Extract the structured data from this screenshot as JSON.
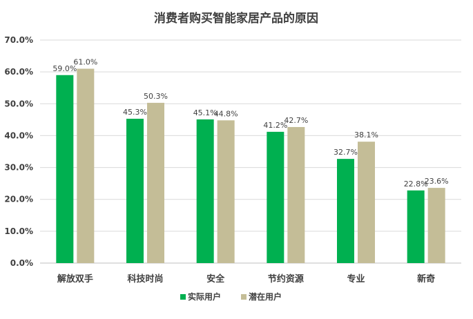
{
  "chart_data": {
    "type": "bar",
    "title": "消费者购买智能家居产品的原因",
    "categories": [
      "解放双手",
      "科技时尚",
      "安全",
      "节约资源",
      "专业",
      "新奇"
    ],
    "series": [
      {
        "name": "实际用户",
        "color": "#00b050",
        "values": [
          59.0,
          45.3,
          45.1,
          41.2,
          32.7,
          22.8
        ],
        "labels": [
          "59.0%",
          "45.3%",
          "45.1%",
          "41.2%",
          "32.7%",
          "22.8%"
        ]
      },
      {
        "name": "潜在用户",
        "color": "#c4bd97",
        "values": [
          61.0,
          50.3,
          44.8,
          42.7,
          38.1,
          23.6
        ],
        "labels": [
          "61.0%",
          "50.3%",
          "44.8%",
          "42.7%",
          "38.1%",
          "23.6%"
        ]
      }
    ],
    "ylim": [
      0,
      70
    ],
    "yticks": [
      0,
      10,
      20,
      30,
      40,
      50,
      60,
      70
    ],
    "ytick_labels": [
      "0.0%",
      "10.0%",
      "20.0%",
      "30.0%",
      "40.0%",
      "50.0%",
      "60.0%",
      "70.0%"
    ],
    "grid": true,
    "legend": "bottom",
    "xlabel": "",
    "ylabel": ""
  }
}
